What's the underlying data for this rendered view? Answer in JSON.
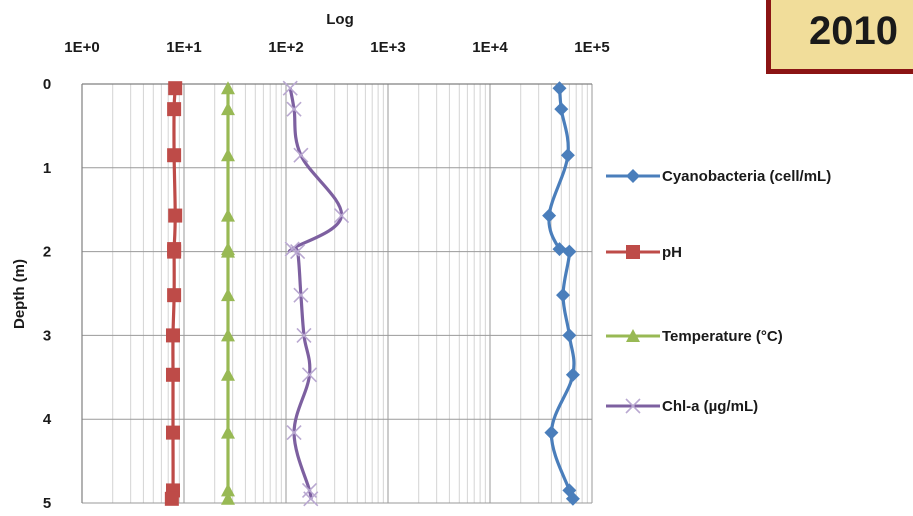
{
  "badge": {
    "text": "2010"
  },
  "chart_data": {
    "type": "line",
    "title": "",
    "xlabel": "Log",
    "ylabel": "Depth (m)",
    "xscale": "log",
    "xlim": [
      1,
      100000
    ],
    "ylim": [
      0,
      5
    ],
    "y_inverted": true,
    "x_tick_labels": [
      "1E+0",
      "1E+1",
      "1E+2",
      "1E+3",
      "1E+4",
      "1E+5"
    ],
    "y_tick_labels": [
      "0",
      "1",
      "2",
      "3",
      "4",
      "5"
    ],
    "grid": true,
    "legend_position": "right",
    "series": [
      {
        "name": "Cyanobacteria (cell/mL)",
        "color": "#4a7ebb",
        "marker": "diamond",
        "points": [
          [
            48000,
            0.05
          ],
          [
            50000,
            0.3
          ],
          [
            58000,
            0.85
          ],
          [
            38000,
            1.57
          ],
          [
            48000,
            1.97
          ],
          [
            60000,
            2.0
          ],
          [
            52000,
            2.52
          ],
          [
            60000,
            3.0
          ],
          [
            65000,
            3.47
          ],
          [
            40000,
            4.16
          ],
          [
            60000,
            4.85
          ],
          [
            65000,
            4.95
          ]
        ]
      },
      {
        "name": "pH",
        "color": "#be4b48",
        "marker": "square",
        "points": [
          [
            8.2,
            0.05
          ],
          [
            8.0,
            0.3
          ],
          [
            8.0,
            0.85
          ],
          [
            8.2,
            1.57
          ],
          [
            8.0,
            1.97
          ],
          [
            8.0,
            2.0
          ],
          [
            8.0,
            2.52
          ],
          [
            7.8,
            3.0
          ],
          [
            7.8,
            3.47
          ],
          [
            7.8,
            4.16
          ],
          [
            7.8,
            4.85
          ],
          [
            7.6,
            4.95
          ]
        ]
      },
      {
        "name": "Temperature (°C)",
        "color": "#98b954",
        "marker": "triangle",
        "points": [
          [
            27,
            0.05
          ],
          [
            27,
            0.3
          ],
          [
            27,
            0.85
          ],
          [
            27,
            1.57
          ],
          [
            27,
            1.97
          ],
          [
            27,
            2.0
          ],
          [
            27,
            2.52
          ],
          [
            27,
            3.0
          ],
          [
            27,
            3.47
          ],
          [
            27,
            4.16
          ],
          [
            27,
            4.85
          ],
          [
            27,
            4.95
          ]
        ]
      },
      {
        "name": "Chl-a (µg/mL)",
        "color": "#7d60a0",
        "marker": "x",
        "points": [
          [
            110,
            0.05
          ],
          [
            120,
            0.3
          ],
          [
            140,
            0.85
          ],
          [
            350,
            1.57
          ],
          [
            115,
            1.97
          ],
          [
            130,
            2.0
          ],
          [
            140,
            2.52
          ],
          [
            150,
            3.0
          ],
          [
            170,
            3.47
          ],
          [
            120,
            4.16
          ],
          [
            170,
            4.85
          ],
          [
            175,
            4.95
          ]
        ]
      }
    ]
  }
}
